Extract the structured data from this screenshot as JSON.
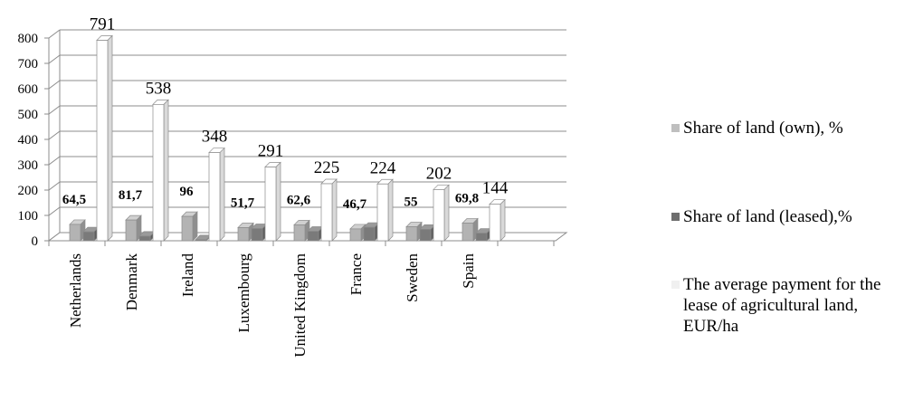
{
  "chart_data": {
    "type": "bar",
    "categories": [
      "Netherlands",
      "Denmark",
      "Ireland",
      "Luxembourg",
      "United Kingdom",
      "France",
      "Sweden",
      "Spain"
    ],
    "series": [
      {
        "name": "Share of land (own), %",
        "values": [
          64.5,
          81.7,
          96,
          51.7,
          62.6,
          46.7,
          55,
          69.8
        ],
        "labels": [
          "64,5",
          "81,7",
          "96",
          "51,7",
          "62,6",
          "46,7",
          "55",
          "69,8"
        ],
        "color": "#a6a6a6"
      },
      {
        "name": "Share of land (leased),%",
        "values": [
          35.5,
          18.3,
          4,
          48.3,
          37.4,
          53.3,
          45,
          30.2
        ],
        "color": "#7f7f7f"
      },
      {
        "name": "The average payment for the lease of agricultural land, EUR/ha",
        "values": [
          791,
          538,
          348,
          291,
          225,
          224,
          202,
          144
        ],
        "labels": [
          "791",
          "538",
          "348",
          "291",
          "225",
          "224",
          "202",
          "144"
        ],
        "color": "#ffffff"
      }
    ],
    "ylim": [
      0,
      800
    ],
    "yticks": [
      0,
      100,
      200,
      300,
      400,
      500,
      600,
      700,
      800
    ],
    "grid": true,
    "legend_position": "right"
  }
}
